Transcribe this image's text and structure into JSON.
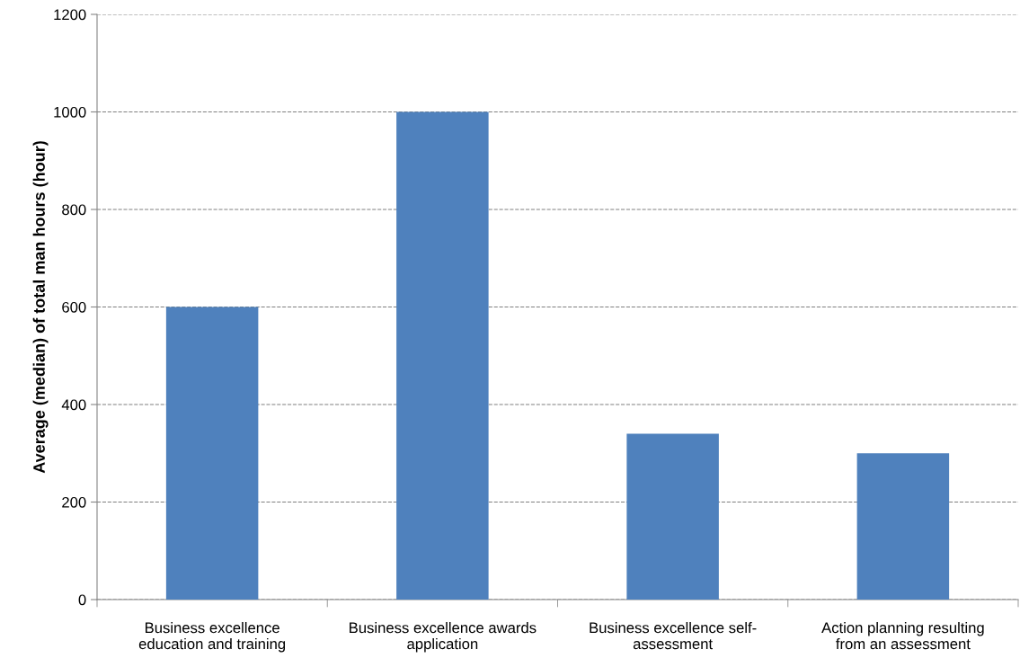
{
  "chart_data": {
    "type": "bar",
    "ylabel": "Average (median) of total man hours (hour)",
    "categories": [
      "Business excellence\neducation and training",
      "Business excellence awards\napplication",
      "Business excellence self-\nassessment",
      "Action planning resulting\nfrom an assessment"
    ],
    "values": [
      600,
      1000,
      340,
      300
    ],
    "color": "#4f81bd",
    "ylim": [
      0,
      1200
    ],
    "yticks": [
      0,
      200,
      400,
      600,
      800,
      1000,
      1200
    ],
    "grid": "y",
    "legend": false
  }
}
